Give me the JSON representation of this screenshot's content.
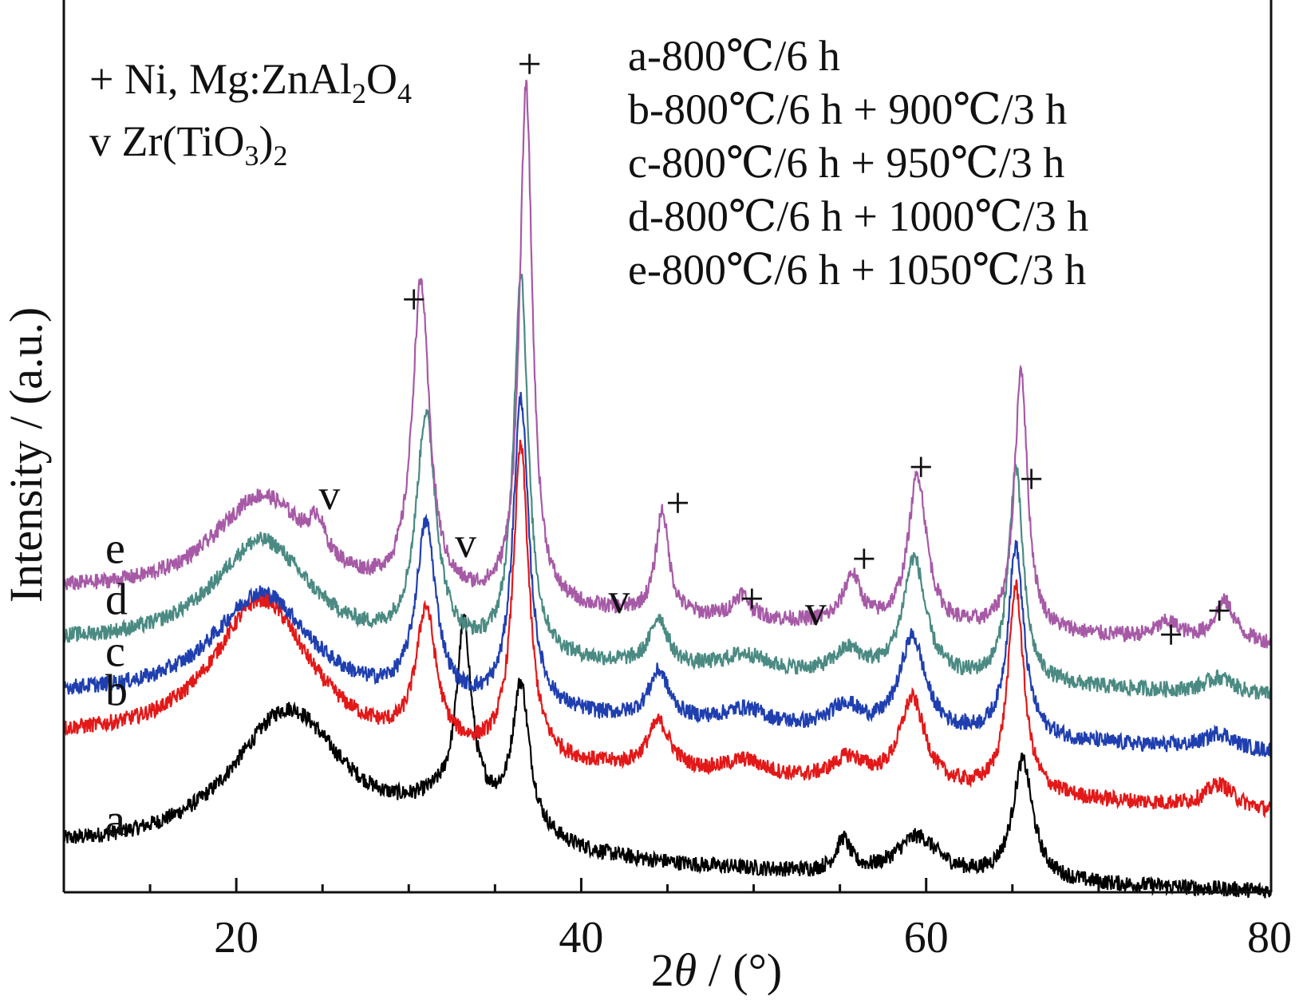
{
  "chart_data": {
    "type": "line",
    "xlabel": {
      "main": "2",
      "italic": "θ",
      "rest": " / (°)"
    },
    "ylabel": "Intensity / (a.u.)",
    "xlim": [
      10,
      80
    ],
    "x_ticks": [
      "20",
      "40",
      "60",
      "80"
    ],
    "phase_legend": [
      {
        "symbol": "+",
        "pre": "Ni, Mg:ZnAl",
        "s1": "2",
        "mid": "O",
        "s2": "4",
        "post": ""
      },
      {
        "symbol": "v",
        "pre": "Zr(TiO",
        "s1": "3",
        "mid": ")",
        "s2": "2",
        "post": ""
      }
    ],
    "series": [
      {
        "label": "a",
        "name": "a-800℃/6 h",
        "color": "#000000",
        "baseline": 0.05,
        "end": 0.0,
        "peaks": [
          [
            23.0,
            0.18,
            4.0
          ],
          [
            33.0,
            0.06,
            4.0
          ],
          [
            33.2,
            0.22,
            0.5
          ],
          [
            36.5,
            0.18,
            0.6
          ],
          [
            55.2,
            0.04,
            0.5
          ],
          [
            59.5,
            0.05,
            1.5
          ],
          [
            65.6,
            0.15,
            0.7
          ]
        ]
      },
      {
        "label": "b",
        "name": "b-800℃/6 h + 900℃/3 h",
        "color": "#e31818",
        "baseline": 0.19,
        "end": 0.1,
        "peaks": [
          [
            21.5,
            0.19,
            3.5
          ],
          [
            31.0,
            0.17,
            0.7
          ],
          [
            36.5,
            0.39,
            0.55
          ],
          [
            44.5,
            0.06,
            0.8
          ],
          [
            49.5,
            0.02,
            1.5
          ],
          [
            55.5,
            0.03,
            1.2
          ],
          [
            59.2,
            0.11,
            0.9
          ],
          [
            65.2,
            0.26,
            0.55
          ],
          [
            77.0,
            0.03,
            1.0
          ]
        ]
      },
      {
        "label": "c",
        "name": "c-800℃/6 h + 950℃/3 h",
        "color": "#1f3fb0",
        "baseline": 0.245,
        "end": 0.175,
        "peaks": [
          [
            21.5,
            0.14,
            3.5
          ],
          [
            31.0,
            0.22,
            0.7
          ],
          [
            36.5,
            0.39,
            0.55
          ],
          [
            44.5,
            0.06,
            0.7
          ],
          [
            49.5,
            0.02,
            1.5
          ],
          [
            55.3,
            0.03,
            1.0
          ],
          [
            59.2,
            0.12,
            0.9
          ],
          [
            65.2,
            0.24,
            0.55
          ],
          [
            77.0,
            0.02,
            1.0
          ]
        ]
      },
      {
        "label": "d",
        "name": "d-800℃/6 h + 1000℃/3 h",
        "color": "#4a8a82",
        "baseline": 0.31,
        "end": 0.245,
        "peaks": [
          [
            21.5,
            0.14,
            3.5
          ],
          [
            31.0,
            0.29,
            0.7
          ],
          [
            36.5,
            0.48,
            0.5
          ],
          [
            44.5,
            0.06,
            0.6
          ],
          [
            49.5,
            0.02,
            1.5
          ],
          [
            55.5,
            0.03,
            1.0
          ],
          [
            59.3,
            0.15,
            0.8
          ],
          [
            65.2,
            0.27,
            0.5
          ],
          [
            77.0,
            0.02,
            1.0
          ]
        ]
      },
      {
        "label": "e",
        "name": "e-800℃/6 h + 1050℃/3 h",
        "color": "#a65aa6",
        "baseline": 0.375,
        "end": 0.31,
        "peaks": [
          [
            21.5,
            0.13,
            3.5
          ],
          [
            24.7,
            0.04,
            0.5
          ],
          [
            30.7,
            0.39,
            0.6
          ],
          [
            36.8,
            0.65,
            0.45
          ],
          [
            44.7,
            0.13,
            0.45
          ],
          [
            49.3,
            0.03,
            0.6
          ],
          [
            55.7,
            0.06,
            0.6
          ],
          [
            59.5,
            0.19,
            0.65
          ],
          [
            65.5,
            0.33,
            0.45
          ],
          [
            74.0,
            0.02,
            0.8
          ],
          [
            77.3,
            0.05,
            0.7
          ]
        ]
      }
    ],
    "markers": [
      {
        "symbol": "+",
        "x": 37.0,
        "y": 1.02
      },
      {
        "symbol": "+",
        "x": 30.3,
        "y": 0.725
      },
      {
        "symbol": "v",
        "x": 25.4,
        "y": 0.48
      },
      {
        "symbol": "v",
        "x": 33.3,
        "y": 0.42
      },
      {
        "symbol": "+",
        "x": 45.6,
        "y": 0.47
      },
      {
        "symbol": "v",
        "x": 42.2,
        "y": 0.35
      },
      {
        "symbol": "+",
        "x": 49.9,
        "y": 0.35
      },
      {
        "symbol": "v",
        "x": 53.6,
        "y": 0.335
      },
      {
        "symbol": "+",
        "x": 56.4,
        "y": 0.4
      },
      {
        "symbol": "+",
        "x": 59.7,
        "y": 0.515
      },
      {
        "symbol": "+",
        "x": 66.1,
        "y": 0.5
      },
      {
        "symbol": "+",
        "x": 74.2,
        "y": 0.305
      },
      {
        "symbol": "+",
        "x": 77.0,
        "y": 0.335
      }
    ]
  }
}
